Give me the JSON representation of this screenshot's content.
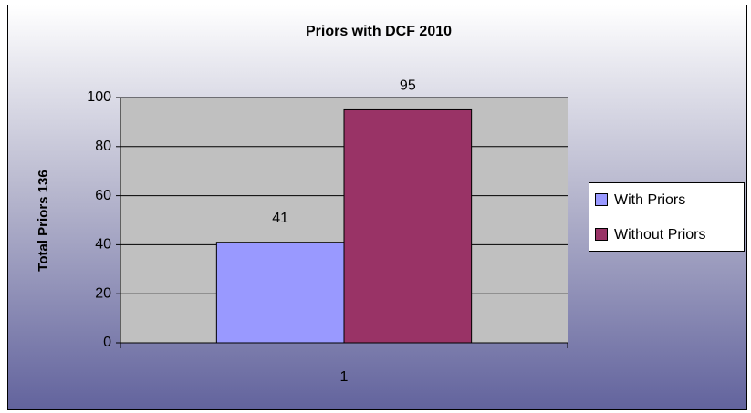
{
  "chart_data": {
    "type": "bar",
    "title": "Priors with DCF 2010",
    "ylabel": "Total Priors 136",
    "categories": [
      "1"
    ],
    "series": [
      {
        "name": "With Priors",
        "color": "#9999ff",
        "values": [
          41
        ]
      },
      {
        "name": "Without Priors",
        "color": "#993366",
        "values": [
          95
        ]
      }
    ],
    "ylim": [
      0,
      100
    ],
    "yticks": [
      0,
      20,
      40,
      60,
      80,
      100
    ],
    "grid": true,
    "legend": "right"
  }
}
